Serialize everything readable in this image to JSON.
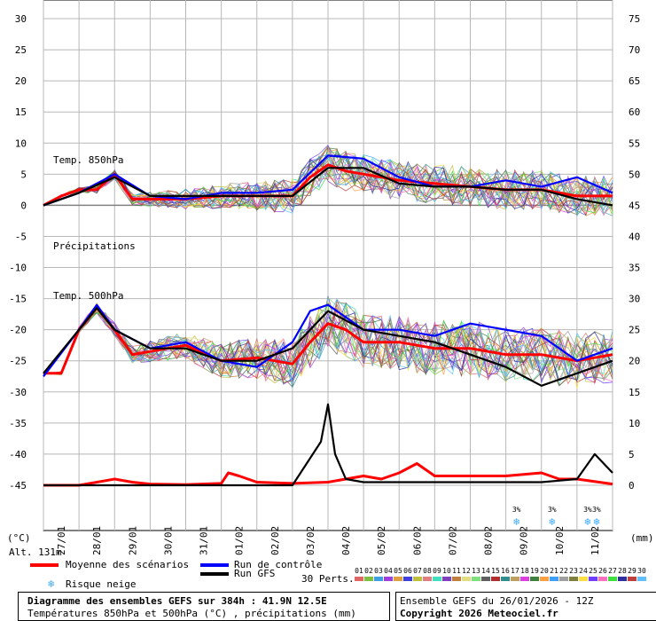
{
  "chart_data": {
    "type": "line",
    "x_dates": [
      "27/01",
      "28/01",
      "29/01",
      "30/01",
      "31/01",
      "01/02",
      "02/02",
      "03/02",
      "04/02",
      "05/02",
      "06/02",
      "07/02",
      "08/02",
      "09/02",
      "10/02",
      "11/02"
    ],
    "x_unit": "days from 26/01/2026 12Z",
    "x_range": [
      0,
      16
    ],
    "left_axis": {
      "unit": "(°C)",
      "range": [
        -45,
        30
      ],
      "ticks": [
        30,
        25,
        20,
        15,
        10,
        5,
        0,
        -5,
        -10,
        -15,
        -20,
        -25,
        -30,
        -35,
        -40,
        -45
      ]
    },
    "right_axis": {
      "unit": "(mm)",
      "range": [
        0,
        75
      ],
      "ticks": [
        75,
        70,
        65,
        60,
        55,
        50,
        45,
        40,
        35,
        30,
        25,
        20,
        15,
        10,
        5,
        0
      ]
    },
    "panel_labels": {
      "t850": "Temp. 850hPa",
      "precip": "Précipitations",
      "t500": "Temp. 500hPa"
    },
    "series": [
      {
        "name": "Moyenne des scénarios",
        "panel": "t850",
        "color": "#ff0000",
        "x": [
          0,
          0.5,
          1,
          1.5,
          2,
          2.5,
          3,
          4,
          5,
          6,
          7,
          7.5,
          8,
          8.5,
          9,
          10,
          11,
          12,
          13,
          14,
          14.5,
          15,
          15.5,
          16
        ],
        "y": [
          0,
          1.5,
          2.5,
          2.5,
          5,
          1,
          1,
          1,
          1.5,
          1.5,
          1.5,
          4.5,
          6.5,
          5.5,
          5,
          4,
          3.5,
          3,
          2.5,
          2.5,
          2,
          1.5,
          1.5,
          1.5
        ]
      },
      {
        "name": "Moyenne des scénarios",
        "panel": "t500",
        "color": "#ff0000",
        "x": [
          0,
          0.5,
          1,
          1.5,
          2,
          2.5,
          3,
          4,
          5,
          6,
          7,
          7.5,
          8,
          8.5,
          9,
          10,
          11,
          12,
          13,
          14,
          15,
          16
        ],
        "y": [
          -27,
          -27,
          -20,
          -16.5,
          -20,
          -24,
          -23.5,
          -22.5,
          -25,
          -24.5,
          -25.5,
          -22,
          -19,
          -20,
          -22,
          -22,
          -23,
          -23,
          -24,
          -24,
          -25,
          -24
        ]
      },
      {
        "name": "Moyenne des scénarios",
        "panel": "precip",
        "color": "#ff0000",
        "x": [
          0,
          1,
          2,
          2.5,
          3,
          4,
          5,
          5.2,
          5.5,
          6,
          7,
          8,
          9,
          9.5,
          10,
          10.5,
          11,
          12,
          13,
          14,
          14.5,
          15,
          16
        ],
        "y": [
          0,
          0,
          1,
          0.5,
          0.2,
          0.1,
          0.3,
          2,
          1.5,
          0.5,
          0.3,
          0.5,
          1.5,
          1,
          2,
          3.5,
          1.5,
          1.5,
          1.5,
          2,
          1,
          1,
          0.2
        ]
      },
      {
        "name": "Run de contrôle",
        "panel": "t850",
        "color": "#0000ff",
        "x": [
          0,
          1,
          2,
          3,
          4,
          5,
          6,
          7,
          8,
          9,
          10,
          11,
          12,
          13,
          14,
          15,
          16
        ],
        "y": [
          0,
          2,
          5,
          1.5,
          1,
          2,
          2,
          2.5,
          8,
          7.5,
          4.5,
          3,
          3,
          4,
          3,
          4.5,
          2
        ]
      },
      {
        "name": "Run de contrôle",
        "panel": "t500",
        "color": "#0000ff",
        "x": [
          0,
          1,
          1.5,
          2,
          3,
          4,
          5,
          6,
          7,
          7.5,
          8,
          9,
          10,
          11,
          12,
          13,
          14,
          15,
          16
        ],
        "y": [
          -27.5,
          -20,
          -16,
          -20,
          -23,
          -22,
          -25,
          -26,
          -22,
          -17,
          -16,
          -20,
          -20,
          -21,
          -19,
          -20,
          -21,
          -25,
          -23
        ]
      },
      {
        "name": "Run GFS",
        "panel": "t850",
        "color": "#000000",
        "x": [
          0,
          1,
          2,
          3,
          4,
          5,
          6,
          7,
          8,
          9,
          10,
          11,
          12,
          13,
          14,
          15,
          16
        ],
        "y": [
          0,
          2,
          4.5,
          1.5,
          1.5,
          1.5,
          1.5,
          1.5,
          6,
          6,
          3.5,
          3,
          3,
          2.5,
          2.5,
          1,
          0
        ]
      },
      {
        "name": "Run GFS",
        "panel": "t500",
        "color": "#000000",
        "x": [
          0,
          1,
          1.5,
          2,
          3,
          4,
          5,
          6,
          7,
          8,
          9,
          10,
          11,
          12,
          13,
          14,
          15,
          16
        ],
        "y": [
          -27,
          -20,
          -16.5,
          -20,
          -23,
          -23,
          -25,
          -25,
          -23,
          -17,
          -20,
          -21,
          -22,
          -24,
          -26,
          -29,
          -27,
          -25
        ]
      },
      {
        "name": "Run GFS",
        "panel": "precip",
        "color": "#000000",
        "x": [
          0,
          5,
          7,
          7.8,
          8,
          8.2,
          8.5,
          9,
          10,
          11,
          12,
          13,
          14,
          15,
          15.5,
          16
        ],
        "y": [
          0,
          0,
          0,
          7,
          13,
          5,
          1,
          0.5,
          0.5,
          0.5,
          0.5,
          0.5,
          0.5,
          1,
          5,
          2
        ]
      }
    ],
    "snow_risk_days": [
      13.3,
      14.3,
      15.3,
      15.55
    ],
    "snow_risk_label": "3%",
    "perturbation_colors": [
      "#e06666",
      "#7fbf3f",
      "#3fa0df",
      "#9f3fdf",
      "#e0a03f",
      "#3f3fdf",
      "#bfbf3f",
      "#df7f7f",
      "#3fdfbf",
      "#7f3fbf",
      "#bf7f3f",
      "#dfdf7f",
      "#7fdf7f",
      "#5f5f5f",
      "#af2f2f",
      "#2f8f8f",
      "#bf9f5f",
      "#df3fdf",
      "#3f7f3f",
      "#ff9f3f",
      "#3f9fff",
      "#9f9f9f",
      "#7f7f3f",
      "#ffdf3f",
      "#6f3fff",
      "#ff6fbf",
      "#3fdf3f",
      "#2f2f9f",
      "#bf3f3f",
      "#5fbfff"
    ]
  },
  "altitude_label": "Alt. 131m",
  "legend": {
    "mean": "Moyenne des scénarios",
    "control": "Run de contrôle",
    "gfs": "Run GFS",
    "snow": "Risque neige",
    "perts": "30 Perts.",
    "pert_numbers": [
      "01",
      "02",
      "03",
      "04",
      "05",
      "06",
      "07",
      "08",
      "09",
      "10",
      "11",
      "12",
      "13",
      "14",
      "15",
      "16",
      "17",
      "18",
      "19",
      "20",
      "21",
      "22",
      "23",
      "24",
      "25",
      "26",
      "27",
      "28",
      "29",
      "30"
    ]
  },
  "footer": {
    "title": "Diagramme des ensembles GEFS sur 384h : 41.9N 12.5E",
    "subtitle": "Températures 850hPa et 500hPa (°C) , précipitations (mm)",
    "run": "Ensemble GEFS du 26/01/2026 - 12Z",
    "copyright": "Copyright 2026 Meteociel.fr"
  }
}
